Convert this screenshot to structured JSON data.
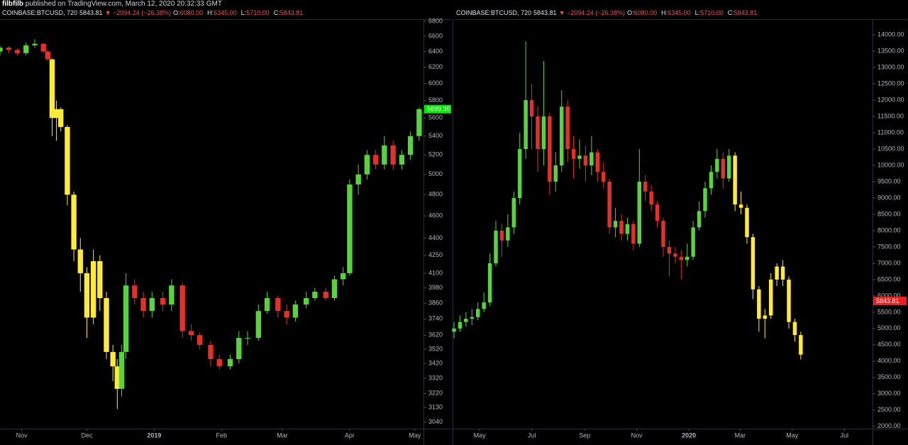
{
  "header": {
    "author": "filbfilb",
    "published": "published on TradingView.com, March 12, 2020 20:32:33 GMT"
  },
  "chart_data": [
    {
      "type": "candlestick",
      "log_scale": true,
      "grid": false,
      "legend": {
        "symbol": "COINBASE:BTCUSD, 720",
        "last": "5843.81",
        "change": "▼ −2094.24 (−26.38%)",
        "fields": [
          {
            "label": "O:",
            "value": "6080.00"
          },
          {
            "label": "H:",
            "value": "6345.00"
          },
          {
            "label": "L:",
            "value": "5710.00"
          },
          {
            "label": "C:",
            "value": "5843.81"
          }
        ]
      },
      "x": [
        0,
        4,
        8,
        12,
        16,
        20,
        22,
        24,
        26,
        28,
        31,
        34,
        37,
        40,
        43,
        46,
        49,
        52,
        54,
        56,
        58,
        62,
        66,
        70,
        75,
        79,
        84,
        88,
        92,
        97,
        101,
        106,
        110,
        114,
        119,
        123,
        128,
        132,
        136,
        141,
        145,
        150,
        154,
        158,
        161,
        165,
        169,
        173,
        177,
        181,
        185,
        189,
        193
      ],
      "open": [
        6400,
        6450,
        6420,
        6380,
        6480,
        6500,
        6400,
        6300,
        5600,
        5700,
        5500,
        4800,
        4300,
        4100,
        3750,
        4200,
        3900,
        3500,
        3400,
        3250,
        3500,
        4000,
        3900,
        3800,
        3900,
        3850,
        4000,
        3650,
        3620,
        3550,
        3450,
        3400,
        3450,
        3600,
        3600,
        3800,
        3900,
        3800,
        3750,
        3850,
        3900,
        3950,
        3900,
        4050,
        4100,
        4900,
        5000,
        5200,
        5100,
        5300,
        5100,
        5200,
        5400
      ],
      "high": [
        6480,
        6470,
        6440,
        6520,
        6560,
        6510,
        6420,
        6310,
        5800,
        5720,
        5520,
        4830,
        4400,
        4150,
        4300,
        4250,
        3950,
        3550,
        3450,
        3550,
        4100,
        4050,
        3950,
        3950,
        3950,
        4050,
        4020,
        3700,
        3640,
        3580,
        3480,
        3480,
        3650,
        3650,
        3850,
        3950,
        3920,
        3850,
        3880,
        3950,
        3980,
        3980,
        4080,
        4150,
        4950,
        5100,
        5250,
        5250,
        5400,
        5350,
        5250,
        5450,
        5720
      ],
      "low": [
        6350,
        6380,
        6350,
        6350,
        6450,
        6380,
        6280,
        5400,
        5350,
        5450,
        4700,
        4200,
        3950,
        3600,
        3700,
        3800,
        3450,
        3300,
        3120,
        3200,
        3450,
        3850,
        3750,
        3750,
        3800,
        3800,
        3600,
        3580,
        3520,
        3400,
        3380,
        3380,
        3420,
        3550,
        3580,
        3780,
        3750,
        3700,
        3720,
        3820,
        3880,
        3880,
        3880,
        4000,
        4080,
        4800,
        4950,
        5050,
        5050,
        5050,
        5050,
        5150,
        5350
      ],
      "close": [
        6450,
        6420,
        6380,
        6480,
        6500,
        6400,
        6300,
        5600,
        5700,
        5500,
        4800,
        4300,
        4100,
        3750,
        4200,
        3900,
        3500,
        3400,
        3250,
        3500,
        4000,
        3900,
        3800,
        3900,
        3850,
        4000,
        3650,
        3620,
        3550,
        3450,
        3400,
        3450,
        3600,
        3600,
        3800,
        3900,
        3800,
        3750,
        3850,
        3900,
        3950,
        3900,
        4050,
        4100,
        4900,
        5000,
        5200,
        5100,
        5300,
        5100,
        5200,
        5400,
        5700
      ],
      "colors": [
        "#5ad13e",
        "#e0312b",
        "#e0312b",
        "#5ad13e",
        "#5ad13e",
        "#e0312b",
        "#e0312b",
        "#ffe93b",
        "#ffe93b",
        "#ffe93b",
        "#ffe93b",
        "#ffe93b",
        "#ffe93b",
        "#ffe93b",
        "#ffe93b",
        "#ffe93b",
        "#ffe93b",
        "#ffe93b",
        "#ffe93b",
        "#5ad13e",
        "#5ad13e",
        "#e0312b",
        "#e0312b",
        "#5ad13e",
        "#e0312b",
        "#5ad13e",
        "#e0312b",
        "#e0312b",
        "#e0312b",
        "#e0312b",
        "#e0312b",
        "#5ad13e",
        "#5ad13e",
        "#5ad13e",
        "#5ad13e",
        "#5ad13e",
        "#e0312b",
        "#e0312b",
        "#5ad13e",
        "#5ad13e",
        "#5ad13e",
        "#e0312b",
        "#5ad13e",
        "#5ad13e",
        "#5ad13e",
        "#5ad13e",
        "#5ad13e",
        "#e0312b",
        "#5ad13e",
        "#e0312b",
        "#5ad13e",
        "#5ad13e",
        "#5ad13e"
      ],
      "xlim": [
        0,
        195
      ],
      "xticks": [
        {
          "value": 10,
          "label": "Nov"
        },
        {
          "value": 40,
          "label": "Dec"
        },
        {
          "value": 71,
          "label": "2019"
        },
        {
          "value": 102,
          "label": "Feb"
        },
        {
          "value": 130,
          "label": "Mar"
        },
        {
          "value": 161,
          "label": "Apr"
        },
        {
          "value": 191,
          "label": "May"
        }
      ],
      "ylim": [
        3000,
        6820
      ],
      "yticks": [
        3040,
        3130,
        3220,
        3320,
        3420,
        3520,
        3620,
        3740,
        3860,
        3980,
        4100,
        4250,
        4400,
        4600,
        4800,
        5000,
        5200,
        5400,
        5600,
        5800,
        6000,
        6200,
        6400,
        6600,
        6800
      ],
      "price_tag": {
        "value": 5699.99,
        "color": "#00e600"
      }
    },
    {
      "type": "candlestick",
      "log_scale": false,
      "grid": false,
      "legend": {
        "symbol": "COINBASE:BTCUSD, 720",
        "last": "5843.81",
        "change": "▼ −2094.24 (−26.38%)",
        "fields": [
          {
            "label": "O:",
            "value": "6080.00"
          },
          {
            "label": "H:",
            "value": "6345.00"
          },
          {
            "label": "L:",
            "value": "5710.00"
          },
          {
            "label": "C:",
            "value": "5843.81"
          }
        ]
      },
      "x": [
        0,
        7,
        14,
        21,
        28,
        35,
        42,
        49,
        56,
        63,
        70,
        77,
        84,
        91,
        98,
        105,
        112,
        119,
        126,
        133,
        140,
        147,
        154,
        161,
        168,
        175,
        182,
        189,
        196,
        203,
        210,
        217,
        224,
        231,
        238,
        245,
        252,
        259,
        266,
        273,
        280,
        287,
        294,
        301,
        308,
        315,
        322,
        329,
        336,
        343,
        350,
        357,
        364,
        371,
        378,
        385,
        392,
        399,
        406
      ],
      "open": [
        4900,
        5000,
        5200,
        5300,
        5350,
        5600,
        5800,
        7000,
        8000,
        7700,
        8100,
        9000,
        10500,
        12000,
        11500,
        10500,
        11500,
        9500,
        10000,
        11800,
        10500,
        10200,
        10300,
        10000,
        10400,
        9800,
        9500,
        8100,
        8300,
        7900,
        8200,
        7600,
        9500,
        9200,
        8800,
        8300,
        7500,
        7300,
        7200,
        7100,
        7200,
        8100,
        8600,
        9300,
        9800,
        10200,
        9600,
        10300,
        8800,
        8700,
        7800,
        6200,
        5300,
        5400,
        6500,
        6900,
        6500,
        5200,
        4800
      ],
      "high": [
        5200,
        5400,
        5500,
        5600,
        5800,
        6100,
        7300,
        8300,
        8200,
        8500,
        9200,
        11000,
        13800,
        12500,
        11800,
        13200,
        11600,
        10400,
        12300,
        12000,
        10900,
        10800,
        10600,
        10900,
        10500,
        10100,
        9600,
        8700,
        8500,
        8400,
        8300,
        10500,
        9700,
        9400,
        8900,
        8400,
        7700,
        7500,
        7400,
        7600,
        8300,
        8900,
        9500,
        10000,
        10500,
        10400,
        10500,
        10400,
        9200,
        8800,
        7900,
        6300,
        5600,
        6700,
        7000,
        7100,
        6600,
        5300,
        4900
      ],
      "low": [
        4700,
        4900,
        5050,
        5100,
        5250,
        5500,
        5700,
        6900,
        7200,
        7500,
        7900,
        8800,
        10200,
        10500,
        9800,
        10000,
        9100,
        9200,
        9800,
        10100,
        9600,
        9900,
        9500,
        9700,
        9500,
        9300,
        7900,
        7800,
        7700,
        7700,
        7400,
        7500,
        8900,
        8600,
        8100,
        7200,
        6600,
        7000,
        6500,
        6900,
        7100,
        8000,
        8400,
        9100,
        9600,
        9300,
        9500,
        8600,
        8500,
        7600,
        5900,
        4900,
        4700,
        5300,
        6300,
        6300,
        5000,
        4600,
        4050
      ],
      "close": [
        5000,
        5200,
        5300,
        5350,
        5600,
        5800,
        7000,
        8000,
        7700,
        8100,
        9000,
        10500,
        12000,
        11500,
        10500,
        11500,
        9500,
        10000,
        11800,
        10500,
        10200,
        10300,
        10000,
        10400,
        9800,
        9500,
        8100,
        8300,
        7900,
        8200,
        7600,
        9500,
        9200,
        8800,
        8300,
        7500,
        7300,
        7200,
        7100,
        7200,
        8100,
        8600,
        9300,
        9800,
        10200,
        9600,
        10300,
        8800,
        8700,
        7800,
        6200,
        5300,
        5400,
        6500,
        6900,
        6500,
        5200,
        4800,
        4200
      ],
      "colors": [
        "#5ad13e",
        "#5ad13e",
        "#5ad13e",
        "#5ad13e",
        "#5ad13e",
        "#5ad13e",
        "#5ad13e",
        "#5ad13e",
        "#e0312b",
        "#5ad13e",
        "#5ad13e",
        "#5ad13e",
        "#5ad13e",
        "#e0312b",
        "#e0312b",
        "#5ad13e",
        "#e0312b",
        "#5ad13e",
        "#5ad13e",
        "#e0312b",
        "#e0312b",
        "#5ad13e",
        "#e0312b",
        "#5ad13e",
        "#e0312b",
        "#e0312b",
        "#e0312b",
        "#5ad13e",
        "#e0312b",
        "#5ad13e",
        "#e0312b",
        "#5ad13e",
        "#e0312b",
        "#e0312b",
        "#e0312b",
        "#e0312b",
        "#e0312b",
        "#e0312b",
        "#e0312b",
        "#5ad13e",
        "#5ad13e",
        "#5ad13e",
        "#5ad13e",
        "#5ad13e",
        "#5ad13e",
        "#e0312b",
        "#5ad13e",
        "#ffe93b",
        "#ffe93b",
        "#ffe93b",
        "#ffe93b",
        "#ffe93b",
        "#ffe93b",
        "#ffe93b",
        "#ffe93b",
        "#ffe93b",
        "#ffe93b",
        "#ffe93b",
        "#ffe93b"
      ],
      "xlim": [
        0,
        490
      ],
      "xticks": [
        {
          "value": 30,
          "label": "May"
        },
        {
          "value": 91,
          "label": "Jul"
        },
        {
          "value": 153,
          "label": "Sep"
        },
        {
          "value": 214,
          "label": "Nov"
        },
        {
          "value": 275,
          "label": "2020"
        },
        {
          "value": 335,
          "label": "Mar"
        },
        {
          "value": 396,
          "label": "May"
        },
        {
          "value": 457,
          "label": "Jul"
        }
      ],
      "ylim": [
        1930,
        14460
      ],
      "yticks": [
        {
          "value": 2000,
          "label": "2000.00"
        },
        {
          "value": 2500,
          "label": "2500.00"
        },
        {
          "value": 3000,
          "label": "3000.00"
        },
        {
          "value": 3500,
          "label": "3500.00"
        },
        {
          "value": 4000,
          "label": "4000.00"
        },
        {
          "value": 4500,
          "label": "4500.00"
        },
        {
          "value": 5000,
          "label": "5000.00"
        },
        {
          "value": 5500,
          "label": "5500.00"
        },
        {
          "value": 6000,
          "label": "6000.00"
        },
        {
          "value": 6500,
          "label": "6500.00"
        },
        {
          "value": 7000,
          "label": "7000.00"
        },
        {
          "value": 7500,
          "label": "7500.00"
        },
        {
          "value": 8000,
          "label": "8000.00"
        },
        {
          "value": 8500,
          "label": "8500.00"
        },
        {
          "value": 9000,
          "label": "9000.00"
        },
        {
          "value": 9500,
          "label": "9500.00"
        },
        {
          "value": 10000,
          "label": "10000.00"
        },
        {
          "value": 10500,
          "label": "10500.00"
        },
        {
          "value": 11000,
          "label": "11000.00"
        },
        {
          "value": 11500,
          "label": "11500.00"
        },
        {
          "value": 12000,
          "label": "12000.00"
        },
        {
          "value": 12500,
          "label": "12500.00"
        },
        {
          "value": 13000,
          "label": "13000.00"
        },
        {
          "value": 13500,
          "label": "13500.00"
        },
        {
          "value": 14000,
          "label": "14000.00"
        }
      ],
      "price_tag": {
        "value": 5843.81,
        "color": "#f01e1e"
      }
    }
  ]
}
